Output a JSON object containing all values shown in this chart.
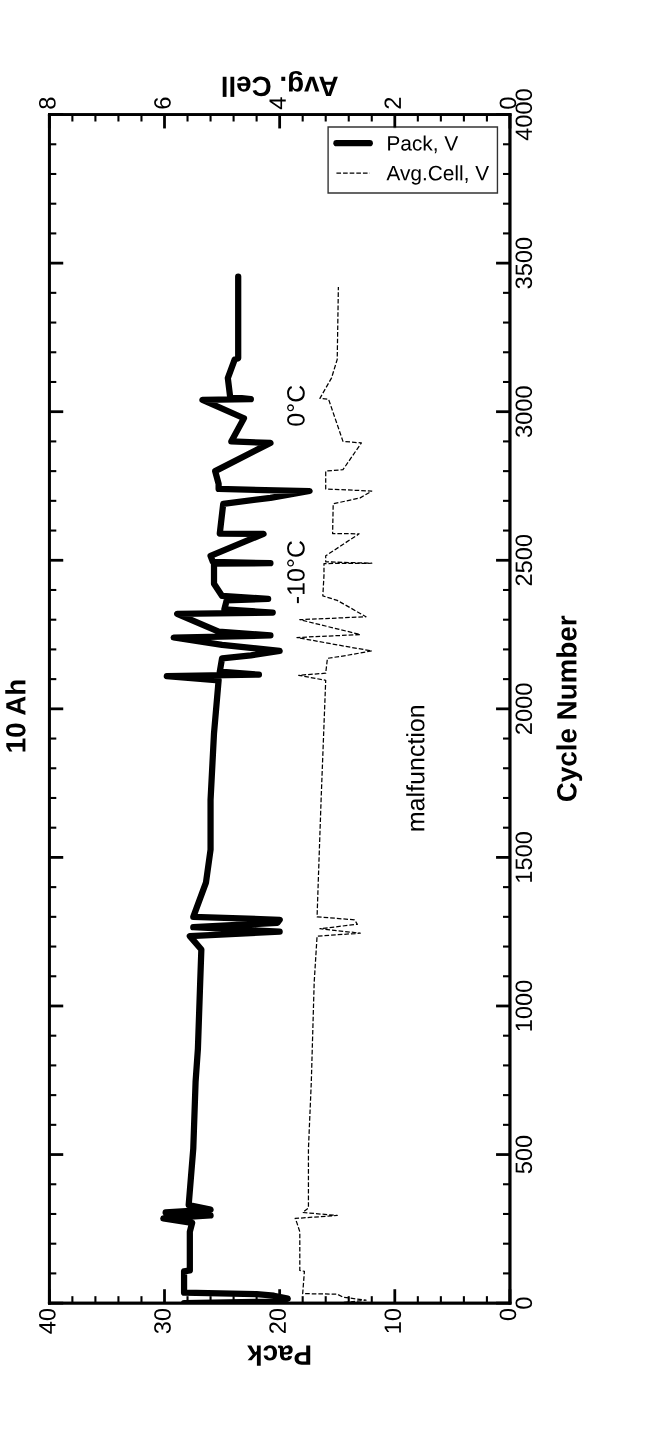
{
  "chart_data": {
    "type": "line",
    "title": "10 Ah",
    "xlabel": "Pack",
    "x2label": "Avg. Cell",
    "ylabel": "Cycle Number",
    "annotations": [
      "-10°C",
      "0°C",
      "malfunction"
    ],
    "xlim": [
      40,
      0
    ],
    "xticks": [
      0,
      10,
      20,
      30,
      40
    ],
    "x2lim": [
      8,
      0
    ],
    "x2ticks": [
      0,
      2,
      4,
      6,
      8
    ],
    "ylim": [
      0,
      4000
    ],
    "yticks": [
      0,
      500,
      1000,
      1500,
      2000,
      2500,
      3000,
      3500,
      4000
    ],
    "legend": "top right",
    "grid": false,
    "marker": "none",
    "series": [
      {
        "name": "Pack, V",
        "color": "#000000",
        "line_style": "solid",
        "x": [
          28.3,
          20.5,
          19.3,
          20.5,
          22,
          28.3,
          28.3,
          27.8,
          27.8,
          27.6,
          30.1,
          26,
          29.9,
          26,
          27.9,
          27.5,
          27.3,
          27.1,
          26.9,
          26.8,
          27.8,
          20,
          27.5,
          20.2,
          20,
          27.5,
          26.4,
          26.0,
          26.0,
          25.7,
          25.3,
          29.8,
          21.8,
          25.2,
          25.0,
          22.5,
          20,
          22.5,
          25,
          29.2,
          20.8,
          25.3,
          28.9,
          20.6,
          24.8,
          24.6,
          21,
          25,
          25.7,
          25.7,
          20.8,
          25.8,
          26.0,
          21.4,
          25.2,
          24.9,
          20.8,
          17.4,
          25.3,
          25.3,
          25.6,
          20.8,
          24.2,
          23.1,
          26.7,
          22.5,
          24.3,
          24.5,
          23.9,
          23.6,
          23.6
        ],
        "values": [
          0,
          5,
          15,
          25,
          30,
          35,
          107,
          110,
          240,
          270,
          285,
          295,
          305,
          315,
          330,
          520,
          745,
          855,
          1080,
          1190,
          1235,
          1250,
          1265,
          1280,
          1290,
          1300,
          1415,
          1526,
          1694,
          1918,
          2096,
          2110,
          2115,
          2125,
          2170,
          2180,
          2195,
          2205,
          2215,
          2240,
          2247,
          2260,
          2320,
          2324,
          2335,
          2365,
          2370,
          2380,
          2421,
          2489,
          2490,
          2495,
          2515,
          2589,
          2590,
          2690,
          2710,
          2733,
          2740,
          2757,
          2800,
          2895,
          2900,
          2978,
          3040,
          3042,
          3050,
          3113,
          3176,
          3180,
          3455
        ]
      },
      {
        "name": "Avg.Cell, V",
        "color": "#000000",
        "line_style": "dashed",
        "axis": "x2",
        "x": [
          3.0,
          2.5,
          2.9,
          3.0,
          3.6,
          3.57,
          3.65,
          3.65,
          3.7,
          3.73,
          3.0,
          3.6,
          3.5,
          3.5,
          3.45,
          3.4,
          3.35,
          2.6,
          3.3,
          2.65,
          2.7,
          3.35,
          3.33,
          3.28,
          3.2,
          3.67,
          3.2,
          3.17,
          2.83,
          2.4,
          2.85,
          3.7,
          2.6,
          3.65,
          2.5,
          3.0,
          3.25,
          3.23,
          3.23,
          2.4,
          3.2,
          3.2,
          2.62,
          3.08,
          3.07,
          2.6,
          2.4,
          3.2,
          3.2,
          2.9,
          2.58,
          2.9,
          3.15,
          3.3,
          3.1,
          3.0,
          2.98
        ],
        "values": [
          0,
          10,
          20,
          30,
          32,
          107,
          110,
          240,
          270,
          285,
          295,
          305,
          320,
          520,
          745,
          1080,
          1235,
          1245,
          1260,
          1275,
          1290,
          1300,
          1415,
          1694,
          2096,
          2113,
          2120,
          2170,
          2180,
          2195,
          2210,
          2240,
          2250,
          2300,
          2310,
          2365,
          2380,
          2450,
          2489,
          2490,
          2495,
          2515,
          2589,
          2590,
          2690,
          2710,
          2733,
          2740,
          2800,
          2805,
          2895,
          2900,
          3042,
          3045,
          3113,
          3176,
          3420
        ]
      }
    ]
  }
}
